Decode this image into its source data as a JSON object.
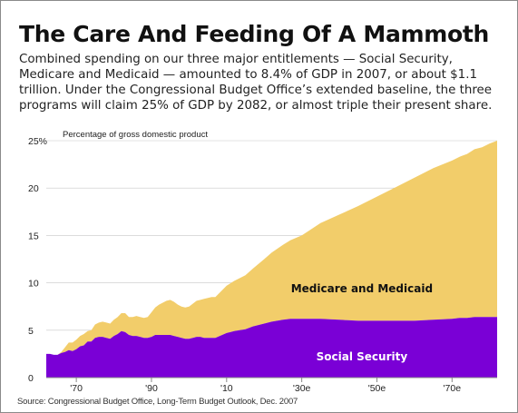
{
  "title": "The Care And Feeding Of A Mammoth",
  "subtitle": "Combined spending on our three major entitlements — Social Security, Medicare and Medicaid — amounted to 8.4% of GDP in 2007, or about $1.1 trillion. Under the Congressional Budget Office’s extended baseline, the three programs will claim 25% of GDP by 2082, or almost triple their present share.",
  "source": "Source: Congressional Budget Office, Long-Term Budget Outlook, Dec. 2007",
  "colors": {
    "social_security": "#7a00d6",
    "medicare_medicaid": "#f2cd6a",
    "axis": "#888888",
    "tick_text": "#222222"
  },
  "chart_data": {
    "type": "area",
    "stacked": true,
    "ylabel": "Percentage of gross domestic product",
    "ylim": [
      0,
      25
    ],
    "y_ticks": [
      {
        "value": 0,
        "label": "0"
      },
      {
        "value": 5,
        "label": "5"
      },
      {
        "value": 10,
        "label": "10"
      },
      {
        "value": 15,
        "label": "15"
      },
      {
        "value": 20,
        "label": "20"
      },
      {
        "value": 25,
        "label": "25%"
      }
    ],
    "xlim": [
      1962,
      2082
    ],
    "x_ticks": [
      {
        "value": 1970,
        "label": "'70"
      },
      {
        "value": 1990,
        "label": "'90"
      },
      {
        "value": 2010,
        "label": "'10"
      },
      {
        "value": 2030,
        "label": "'30e"
      },
      {
        "value": 2050,
        "label": "'50e"
      },
      {
        "value": 2070,
        "label": "'70e"
      }
    ],
    "x": [
      1962,
      1963,
      1964,
      1965,
      1966,
      1967,
      1968,
      1969,
      1970,
      1971,
      1972,
      1973,
      1974,
      1975,
      1976,
      1977,
      1978,
      1979,
      1980,
      1981,
      1982,
      1983,
      1984,
      1985,
      1986,
      1987,
      1988,
      1989,
      1990,
      1991,
      1992,
      1993,
      1994,
      1995,
      1996,
      1997,
      1998,
      1999,
      2000,
      2001,
      2002,
      2003,
      2004,
      2005,
      2006,
      2007,
      2010,
      2012,
      2015,
      2017,
      2020,
      2022,
      2025,
      2027,
      2030,
      2035,
      2040,
      2045,
      2050,
      2055,
      2060,
      2065,
      2070,
      2072,
      2074,
      2076,
      2078,
      2080,
      2082
    ],
    "series": [
      {
        "name": "Social Security",
        "values": [
          2.5,
          2.5,
          2.4,
          2.4,
          2.6,
          2.7,
          2.9,
          2.8,
          3.0,
          3.3,
          3.4,
          3.8,
          3.8,
          4.2,
          4.3,
          4.3,
          4.2,
          4.1,
          4.4,
          4.6,
          4.9,
          4.8,
          4.5,
          4.4,
          4.4,
          4.3,
          4.2,
          4.2,
          4.3,
          4.5,
          4.5,
          4.5,
          4.5,
          4.5,
          4.4,
          4.3,
          4.2,
          4.1,
          4.1,
          4.2,
          4.3,
          4.3,
          4.2,
          4.2,
          4.2,
          4.2,
          4.7,
          4.9,
          5.1,
          5.4,
          5.7,
          5.9,
          6.1,
          6.2,
          6.2,
          6.2,
          6.1,
          6.0,
          6.0,
          6.0,
          6.0,
          6.1,
          6.2,
          6.3,
          6.3,
          6.4,
          6.4,
          6.4,
          6.4
        ]
      },
      {
        "name": "Medicare and Medicaid",
        "values": [
          0.0,
          0.0,
          0.0,
          0.0,
          0.1,
          0.5,
          0.8,
          0.9,
          1.0,
          1.1,
          1.2,
          1.1,
          1.2,
          1.4,
          1.5,
          1.6,
          1.6,
          1.6,
          1.7,
          1.8,
          1.9,
          2.0,
          1.9,
          2.0,
          2.1,
          2.1,
          2.1,
          2.2,
          2.6,
          2.9,
          3.2,
          3.4,
          3.6,
          3.7,
          3.6,
          3.4,
          3.3,
          3.3,
          3.4,
          3.6,
          3.8,
          3.9,
          4.1,
          4.2,
          4.3,
          4.3,
          5.0,
          5.3,
          5.7,
          6.1,
          6.8,
          7.3,
          7.9,
          8.3,
          8.8,
          10.1,
          11.1,
          12.1,
          13.1,
          14.1,
          15.1,
          16.0,
          16.7,
          17.0,
          17.3,
          17.7,
          17.9,
          18.3,
          18.6
        ]
      }
    ],
    "annotations": [
      {
        "text": "Medicare and Medicaid",
        "series": "Medicare and Medicaid"
      },
      {
        "text": "Social Security",
        "series": "Social Security"
      }
    ],
    "grid": true
  }
}
